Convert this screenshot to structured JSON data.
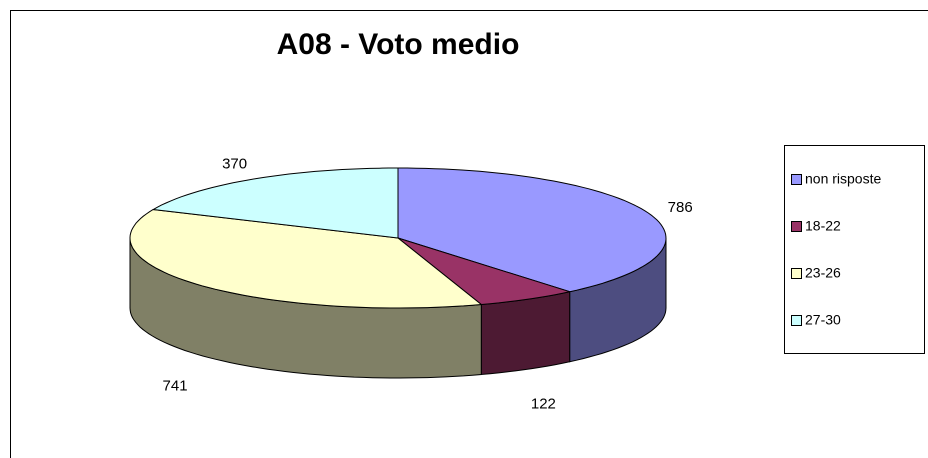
{
  "chart_data": {
    "type": "pie3d",
    "title": "A08 - Voto medio",
    "categories": [
      "non risposte",
      "18-22",
      "23-26",
      "27-30"
    ],
    "values": [
      786,
      122,
      741,
      370
    ],
    "colors": [
      "#9999ff",
      "#993366",
      "#ffffcc",
      "#ccffff"
    ],
    "legend": "right"
  }
}
